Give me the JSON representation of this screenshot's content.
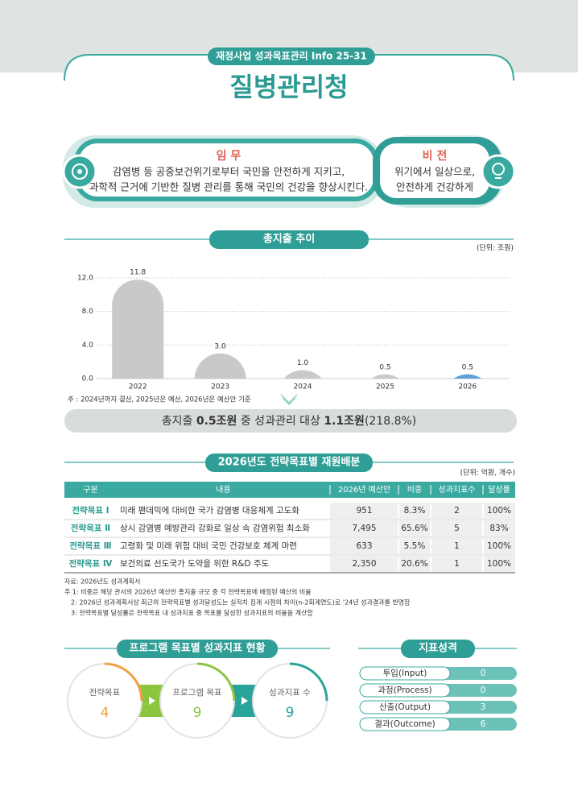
{
  "header": {
    "tag": "재정사업 성과목표관리 Info 25-31",
    "title": "질병관리청"
  },
  "mission": {
    "label": "임 무",
    "lines": [
      "감염병 등 공중보건위기로부터 국민을 안전하게 지키고,",
      "과학적 근거에 기반한 질병 관리를 통해 국민의 건강을 향상시킨다."
    ]
  },
  "vision": {
    "label": "비 전",
    "lines": [
      "위기에서 일상으로,",
      "안전하게 건강하게"
    ]
  },
  "chart_data": {
    "type": "bar",
    "title": "총지출 추이",
    "unit": "(단위: 조원)",
    "categories": [
      "2022",
      "2023",
      "2024",
      "2025",
      "2026"
    ],
    "values": [
      11.8,
      3.0,
      1.0,
      0.5,
      0.5
    ],
    "value_labels": [
      "11.8",
      "3.0",
      "1.0",
      "0.5",
      "0.5"
    ],
    "colors": [
      "#c9c9c9",
      "#c9c9c9",
      "#c9c9c9",
      "#c9c9c9",
      "#5b9fdb"
    ],
    "ylim": [
      0,
      12
    ],
    "yticks": [
      {
        "value": 0,
        "label": "0.0"
      },
      {
        "value": 4,
        "label": "4.0"
      },
      {
        "value": 8,
        "label": "8.0"
      },
      {
        "value": 12,
        "label": "12.0"
      }
    ],
    "grid": true,
    "note": "주 : 2024년까지 결산, 2025년은 예산, 2026년은 예산안 기준"
  },
  "summary": [
    "총지출 ",
    "0.5조원",
    " 중 성과관리 대상 ",
    "1.1조원",
    "(218.8%)"
  ],
  "allocation": {
    "title": "2026년도 전략목표별 재원배분",
    "unit": "(단위: 억원, 개수)",
    "table": {
      "header": [
        "구분",
        "내용",
        "2026년 예산안",
        "비중",
        "성과지표수",
        "달성률"
      ],
      "rows": [
        [
          "전략목표 Ⅰ",
          "미래 팬데믹에 대비한 국가 감염병 대응체계 고도화",
          "951",
          "8.3%",
          "2",
          "100%"
        ],
        [
          "전략목표 Ⅱ",
          "상시 감염병 예방관리 강화로 일상 속 감염위험 최소화",
          "7,495",
          "65.6%",
          "5",
          "83%"
        ],
        [
          "전략목표 Ⅲ",
          "고령화 및 미래 위험 대비 국민 건강보호 체계 마련",
          "633",
          "5.5%",
          "1",
          "100%"
        ],
        [
          "전략목표 Ⅳ",
          "보건의료 선도국가 도약을 위한 R&D 주도",
          "2,350",
          "20.6%",
          "1",
          "100%"
        ]
      ]
    },
    "notes": [
      "자료:  2026년도 성과계획서",
      "주 1: 비중은 해당 관서의 2026년 예산안 총지출 규모 중 각 전략목표에 배정된 예산의 비율",
      "2: 2026년 성과계획서상 최근의 전략목표별 성과달성도는 실적치 집계 시점의 차이(n-2회계연도)로 '24년 성과결과를 반영함",
      "3: 전략목표별 달성률은 전략목표 내 성과지표 중 목표를 달성한 성과지표의 비율을 계산함"
    ]
  },
  "program": {
    "title": "프로그램 목표별 성과지표 현황",
    "items": [
      {
        "label": "전략목표",
        "value": "4"
      },
      {
        "label": "프로그램 목표",
        "value": "9"
      },
      {
        "label": "성과지표 수",
        "value": "9"
      }
    ]
  },
  "indicator": {
    "title": "지표성격",
    "rows": [
      [
        "투입(Input)",
        "0"
      ],
      [
        "과정(Process)",
        "0"
      ],
      [
        "산출(Output)",
        "3"
      ],
      [
        "결과(Outcome)",
        "6"
      ]
    ]
  }
}
